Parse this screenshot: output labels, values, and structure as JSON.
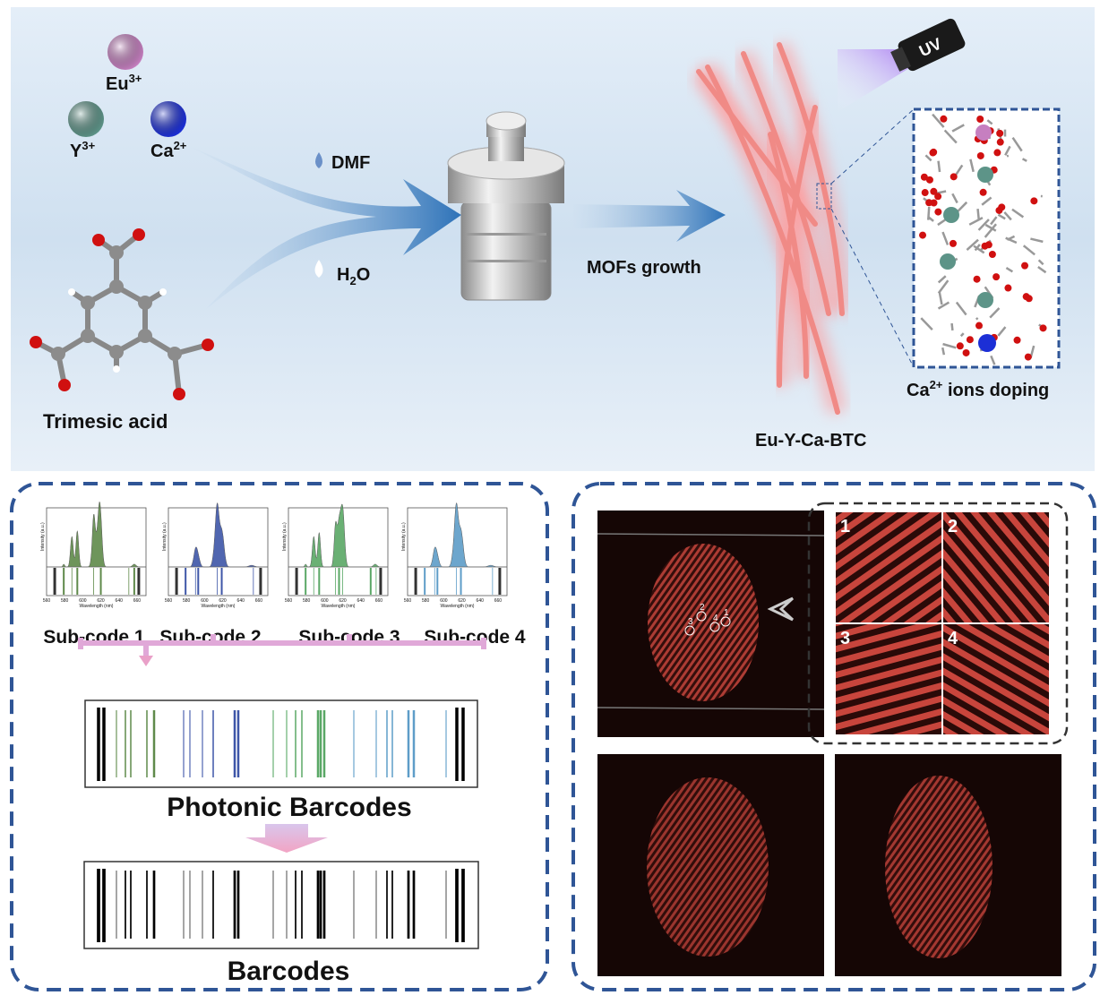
{
  "top_panel": {
    "ions": [
      {
        "base": "Eu",
        "charge": "3+",
        "color": "#c67fc0"
      },
      {
        "base": "Y",
        "charge": "3+",
        "color": "#5d9488"
      },
      {
        "base": "Ca",
        "charge": "2+",
        "color": "#1c2fd6"
      }
    ],
    "linker_label": "Trimesic acid",
    "solvents": [
      {
        "label": "DMF",
        "icon": "droplet-blue"
      },
      {
        "label": "H",
        "sub": "2",
        "tail": "O",
        "icon": "droplet-white"
      }
    ],
    "growth_label": "MOFs growth",
    "uv_label": "UV",
    "product_label": "Eu-Y-Ca-BTC",
    "doping_label_base": "Ca",
    "doping_label_charge": "2+",
    "doping_label_tail": " ions doping"
  },
  "barcode_panel": {
    "spectra": [
      {
        "label": "Sub-code 1",
        "color": "#5f8a4a"
      },
      {
        "label": "Sub-code 2",
        "color": "#3e56a8"
      },
      {
        "label": "Sub-code 3",
        "color": "#5aa866"
      },
      {
        "label": "Sub-code 4",
        "color": "#5e9dc8"
      }
    ],
    "y_axis_label": "Intensity (a.u.)",
    "x_axis_label": "Wavelength (nm)",
    "x_ticks": [
      "560",
      "580",
      "600",
      "620",
      "640",
      "660"
    ],
    "photonic_label": "Photonic Barcodes",
    "barcode_label": "Barcodes"
  },
  "fingerprint_panel": {
    "markers": [
      "1",
      "2",
      "3",
      "4"
    ],
    "inset_labels": [
      "1",
      "2",
      "3",
      "4"
    ]
  },
  "colors": {
    "border": "#2f5596",
    "fiber": "#f08a86",
    "fingerprint": "#c8453c"
  }
}
